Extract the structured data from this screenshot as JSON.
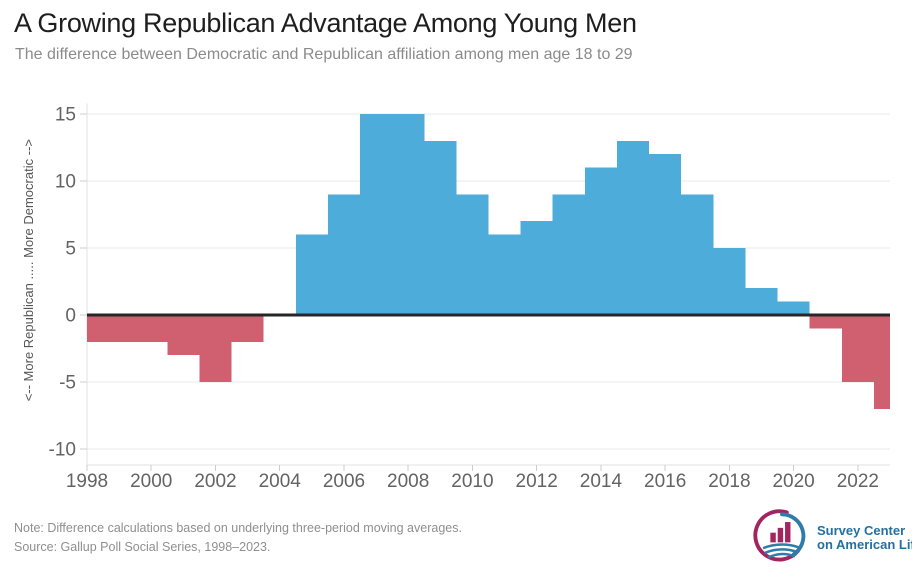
{
  "header": {
    "title": "A Growing Republican Advantage Among Young Men",
    "subtitle": "The difference between Democratic and Republican affiliation among men age 18 to 29"
  },
  "chart_data": {
    "type": "bar",
    "variant": "step-area-diverging",
    "title": "A Growing Republican Advantage Among Young Men",
    "subtitle": "The difference between Democratic and Republican affiliation among men age 18 to 29",
    "x": [
      1998,
      1999,
      2000,
      2001,
      2002,
      2003,
      2004,
      2005,
      2006,
      2007,
      2008,
      2009,
      2010,
      2011,
      2012,
      2013,
      2014,
      2015,
      2016,
      2017,
      2018,
      2019,
      2020,
      2021,
      2022,
      2023
    ],
    "values": [
      -2,
      -2,
      -2,
      -3,
      -5,
      -2,
      0,
      6,
      9,
      15,
      15,
      13,
      9,
      6,
      7,
      9,
      11,
      13,
      12,
      9,
      5,
      2,
      1,
      -1,
      -5,
      -7
    ],
    "xlabel": "",
    "ylabel": "<-- More Republican ..... More Democratic -->",
    "xlim": [
      1998,
      2023
    ],
    "ylim": [
      -11.2,
      15.8
    ],
    "xticks": [
      1998,
      2000,
      2002,
      2004,
      2006,
      2008,
      2010,
      2012,
      2014,
      2016,
      2018,
      2020,
      2022
    ],
    "yticks": [
      -10,
      -5,
      0,
      5,
      10,
      15
    ],
    "grid": "horizontal",
    "legend": "none",
    "bar_width_years": 1,
    "colors": {
      "positive": "#4EACDA",
      "negative": "#D06070",
      "zero_line": "#262626",
      "grid": "#e9e9e9",
      "axis_border": "#e2e2e2",
      "tick": "#cccccc",
      "tick_label": "#636363",
      "axis_title": "#565656"
    }
  },
  "footer": {
    "note": "Note: Difference calculations based on underlying three-period moving averages.",
    "source": "Source: Gallup Poll Social Series, 1998–2023.",
    "logo": {
      "line1": "Survey Center",
      "line2": "on American Life",
      "text_color": "#2470A0",
      "accent_magenta": "#A3245F",
      "accent_blue": "#2E7CA8"
    }
  }
}
